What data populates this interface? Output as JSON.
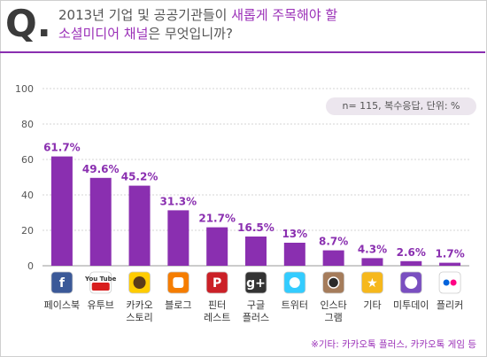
{
  "question": {
    "mark": "Q.",
    "line1_pre": "2013년 기업 및 공공기관들이 ",
    "line1_hl": "새롭게 주목해야 할",
    "line2_hl": "소셜미디어 채널",
    "line2_post": "은 무엇입니까?"
  },
  "note": "n= 115, 복수응답, 단위: %",
  "footnote": "※기타: 카카오톡 플러스, 카카오톡 게임 등",
  "colors": {
    "bar": "#8a2fb0",
    "label": "#8a2fb0",
    "accent": "#9b30b8"
  },
  "chart_data": {
    "type": "bar",
    "categories": [
      "페이스북",
      "유투브",
      "카카오\n스토리",
      "블로그",
      "핀터\n레스트",
      "구글\n플러스",
      "트위터",
      "인스타\n그램",
      "기타",
      "미투데이",
      "플리커"
    ],
    "values": [
      61.7,
      49.6,
      45.2,
      31.3,
      21.7,
      16.5,
      13,
      8.7,
      4.3,
      2.6,
      1.7
    ],
    "value_labels": [
      "61.7%",
      "49.6%",
      "45.2%",
      "31.3%",
      "21.7%",
      "16.5%",
      "13%",
      "8.7%",
      "4.3%",
      "2.6%",
      "1.7%"
    ],
    "icons": [
      "facebook-icon",
      "youtube-icon",
      "kakaostory-icon",
      "blogger-icon",
      "pinterest-icon",
      "googleplus-icon",
      "twitter-icon",
      "instagram-icon",
      "star-icon",
      "me2day-icon",
      "flickr-icon"
    ],
    "icon_text": [
      "f",
      "You Tube",
      "",
      "",
      "P",
      "g+",
      "",
      "",
      "★",
      "",
      ""
    ],
    "y_ticks": [
      0,
      20,
      40,
      60,
      80,
      100
    ],
    "ylim": [
      0,
      100
    ],
    "grid": true
  }
}
